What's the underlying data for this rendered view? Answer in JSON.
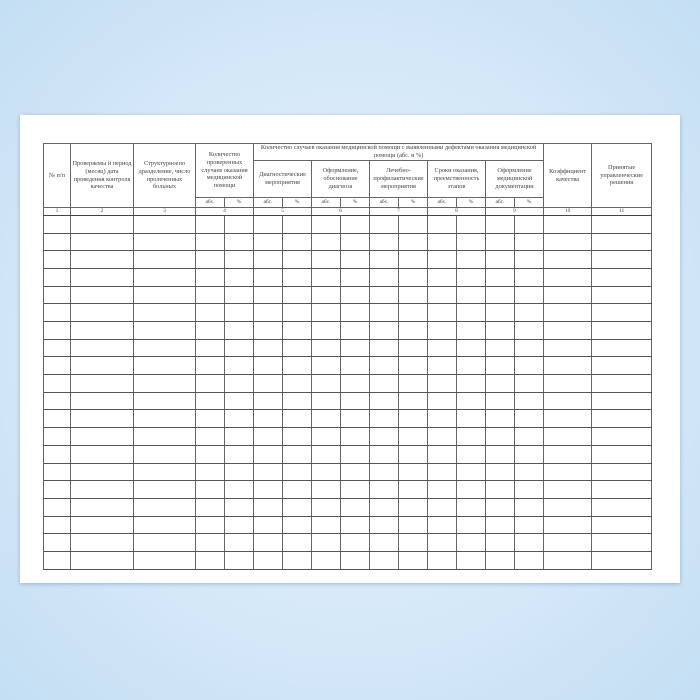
{
  "table": {
    "col_np": "№ п/п",
    "col_period": "Проверяемы й период (месяц) дата проведения контроля качества",
    "col_unit": "Структурноепо дразделение, число пролеченных больных",
    "col_checked": "Количество проверенных случаев оказания медицинской помощи",
    "col_defects": "Количество случаев оказания медицинской помощи с выявленными дефектами оказания медицинской помощи (абс. и %)",
    "sub_diag": "Диагностические мероприятия",
    "sub_format": "Оформление, обоснование диагноза",
    "sub_treat": "Лечебно-профилактические мероприятия",
    "sub_terms": "Сроки оказания, преемственность этапов",
    "sub_docs": "Оформление медицинской документации",
    "col_coef": "Коэффициент качества",
    "col_decisions": "Принятые управленческие решения",
    "abs": "абс.",
    "pct": "%",
    "numbers": [
      "1",
      "2",
      "3",
      "4",
      "5",
      "6",
      "7",
      "8",
      "9",
      "10",
      "11"
    ],
    "empty_rows": 20
  }
}
